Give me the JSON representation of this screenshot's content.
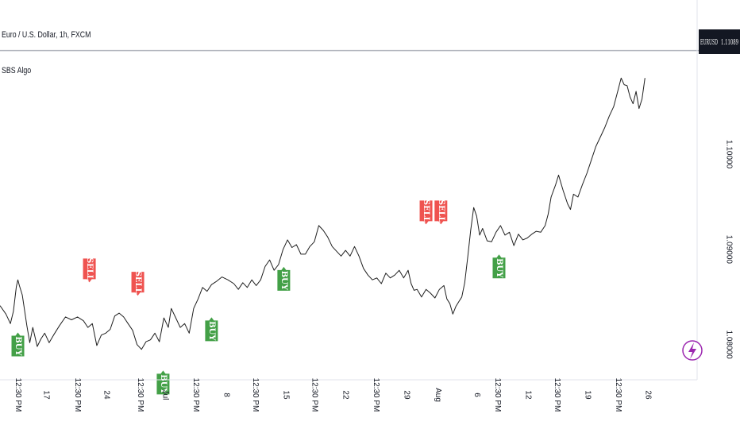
{
  "header": {
    "symbol_line": "Euro / U.S. Dollar, 1h, FXCM",
    "indicator_label": "SBS Algo"
  },
  "price_tag": {
    "symbol": "EURUSD",
    "value": "1.11089"
  },
  "colors": {
    "price_line": "#1f1f1f",
    "buy": "#43a047",
    "sell": "#ef5350",
    "tag_bg": "#131722",
    "last_price_line": "#b2b5be",
    "bolt": "#9c27b0"
  },
  "chart_data": {
    "type": "line",
    "title": "",
    "xlabel": "",
    "ylabel": "",
    "ylim": [
      1.0763,
      1.1162
    ],
    "yticks": [
      1.08,
      1.09,
      1.1
    ],
    "ytick_labels": [
      "1.08000",
      "1.09000",
      "1.10000"
    ],
    "xlim": [
      0,
      936
    ],
    "x_ticks": [
      {
        "x": 24,
        "label": "12:30 PM"
      },
      {
        "x": 62,
        "label": "17"
      },
      {
        "x": 104,
        "label": "12:30 PM"
      },
      {
        "x": 143,
        "label": "24"
      },
      {
        "x": 188,
        "label": "12:30 PM"
      },
      {
        "x": 222,
        "label": "Jul"
      },
      {
        "x": 263,
        "label": "12:30 PM"
      },
      {
        "x": 304,
        "label": "8"
      },
      {
        "x": 343,
        "label": "12:30 PM"
      },
      {
        "x": 384,
        "label": "15"
      },
      {
        "x": 422,
        "label": "12:30 PM"
      },
      {
        "x": 464,
        "label": "22"
      },
      {
        "x": 505,
        "label": "12:30 PM"
      },
      {
        "x": 546,
        "label": "29"
      },
      {
        "x": 588,
        "label": "Aug"
      },
      {
        "x": 640,
        "label": "6"
      },
      {
        "x": 668,
        "label": "12:30 PM"
      },
      {
        "x": 709,
        "label": "12"
      },
      {
        "x": 748,
        "label": "12:30 PM"
      },
      {
        "x": 789,
        "label": "19"
      },
      {
        "x": 830,
        "label": "12:30 PM"
      },
      {
        "x": 870,
        "label": "26"
      }
    ],
    "series": [
      {
        "x": [
          0,
          8,
          14,
          18,
          22,
          24,
          26,
          30,
          36,
          40,
          44,
          50,
          55,
          60,
          66,
          72,
          80,
          88,
          96,
          104,
          112,
          118,
          124,
          130,
          136,
          142,
          148,
          154,
          160,
          166,
          172,
          178,
          184,
          190,
          196,
          202,
          208,
          214,
          220,
          226,
          230,
          236,
          242,
          248,
          254,
          260,
          266,
          272,
          278,
          284,
          290,
          298,
          306,
          314,
          320,
          326,
          332,
          338,
          344,
          350,
          356,
          362,
          368,
          374,
          380,
          386,
          392,
          398,
          404,
          410,
          416,
          422,
          428,
          434,
          440,
          446,
          452,
          458,
          464,
          470,
          476,
          482,
          488,
          494,
          500,
          506,
          512,
          518,
          524,
          530,
          536,
          542,
          548,
          552,
          556,
          560,
          566,
          572,
          578,
          584,
          590,
          596,
          600,
          604,
          608,
          612,
          616,
          620,
          624,
          628,
          632,
          636,
          640,
          644,
          648,
          654,
          660,
          666,
          672,
          678,
          684,
          690,
          696,
          702,
          708,
          714,
          720,
          726,
          732,
          736,
          740,
          746,
          750,
          756,
          762,
          766,
          770,
          776,
          782,
          788,
          794,
          800,
          806,
          812,
          818,
          824,
          830,
          834,
          838,
          842,
          846,
          850,
          854,
          858,
          862,
          866
        ],
        "y": [
          1.0841,
          1.0832,
          1.0822,
          1.0835,
          1.0861,
          1.0868,
          1.0862,
          1.0852,
          1.082,
          1.0802,
          1.0818,
          1.0798,
          1.0806,
          1.0812,
          1.0802,
          1.081,
          1.082,
          1.0829,
          1.0826,
          1.0829,
          1.0825,
          1.0818,
          1.0822,
          1.0799,
          1.081,
          1.0812,
          1.0816,
          1.083,
          1.0833,
          1.0829,
          1.0822,
          1.0815,
          1.08,
          1.0795,
          1.0803,
          1.0805,
          1.0812,
          1.0803,
          1.0828,
          1.0818,
          1.0838,
          1.0828,
          1.0818,
          1.0822,
          1.0812,
          1.0838,
          1.0848,
          1.086,
          1.0856,
          1.0863,
          1.0866,
          1.0871,
          1.0868,
          1.0864,
          1.0858,
          1.0865,
          1.086,
          1.0868,
          1.0862,
          1.0868,
          1.0882,
          1.0889,
          1.0878,
          1.0884,
          1.09,
          1.091,
          1.0902,
          1.0905,
          1.0895,
          1.0895,
          1.0903,
          1.0908,
          1.0925,
          1.092,
          1.0913,
          1.0903,
          1.0898,
          1.0893,
          1.0899,
          1.0893,
          1.0903,
          1.0893,
          1.088,
          1.0873,
          1.0868,
          1.087,
          1.0864,
          1.0875,
          1.087,
          1.0873,
          1.0878,
          1.087,
          1.0878,
          1.0864,
          1.0857,
          1.0858,
          1.085,
          1.0858,
          1.0854,
          1.0849,
          1.0858,
          1.0862,
          1.0848,
          1.0843,
          1.0832,
          1.084,
          1.0845,
          1.085,
          1.0865,
          1.0892,
          1.092,
          1.0944,
          1.0935,
          1.0915,
          1.0922,
          1.0909,
          1.0908,
          1.0918,
          1.0925,
          1.0915,
          1.0918,
          1.0904,
          1.0916,
          1.091,
          1.0912,
          1.0916,
          1.0919,
          1.0918,
          1.0925,
          1.0937,
          1.0955,
          1.0968,
          1.0978,
          1.0962,
          1.0948,
          1.0942,
          1.0958,
          1.0955,
          1.0968,
          1.098,
          1.0994,
          1.1008,
          1.1018,
          1.1028,
          1.104,
          1.105,
          1.1068,
          1.108,
          1.1073,
          1.1072,
          1.106,
          1.1053,
          1.1066,
          1.1048,
          1.1058,
          1.108
        ],
        "name": ""
      }
    ],
    "signals": [
      {
        "type": "BUY",
        "label": "BUY",
        "x": 24,
        "y": 1.0816
      },
      {
        "type": "SELL",
        "label": "SELL",
        "x": 120,
        "y": 1.0862
      },
      {
        "type": "SELL",
        "label": "SELL",
        "x": 185,
        "y": 1.0848
      },
      {
        "type": "BUY",
        "label": "BUY",
        "x": 219,
        "y": 1.0776
      },
      {
        "type": "BUY",
        "label": "BUY",
        "x": 284,
        "y": 1.0832
      },
      {
        "type": "BUY",
        "label": "BUY",
        "x": 381,
        "y": 1.0885
      },
      {
        "type": "SELL",
        "label": "SELL",
        "x": 572,
        "y": 1.0923
      },
      {
        "type": "SELL",
        "label": "SELL",
        "x": 592,
        "y": 1.0923
      },
      {
        "type": "BUY",
        "label": "BUY",
        "x": 670,
        "y": 1.0898
      }
    ],
    "last_price": 1.11089,
    "grid": false,
    "legend": "none"
  }
}
